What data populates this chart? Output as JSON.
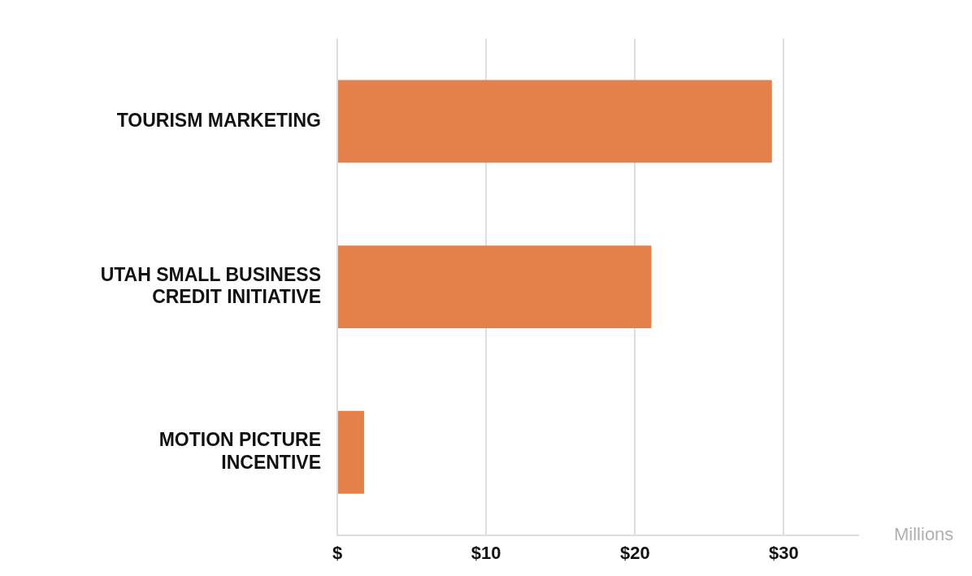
{
  "chart_data": {
    "type": "bar",
    "orientation": "horizontal",
    "categories": [
      "TOURISM MARKETING",
      "UTAH SMALL BUSINESS CREDIT INITIATIVE",
      "MOTION PICTURE INCENTIVE"
    ],
    "values": [
      29.2,
      21.1,
      1.8
    ],
    "color": "#e4814a",
    "xlabel": "Millions",
    "xlim": [
      0,
      35
    ],
    "xticks": [
      {
        "value": 0,
        "label": "$"
      },
      {
        "value": 10,
        "label": "$10"
      },
      {
        "value": 20,
        "label": "$20"
      },
      {
        "value": 30,
        "label": "$30"
      }
    ],
    "grid": "x",
    "legend": false
  }
}
